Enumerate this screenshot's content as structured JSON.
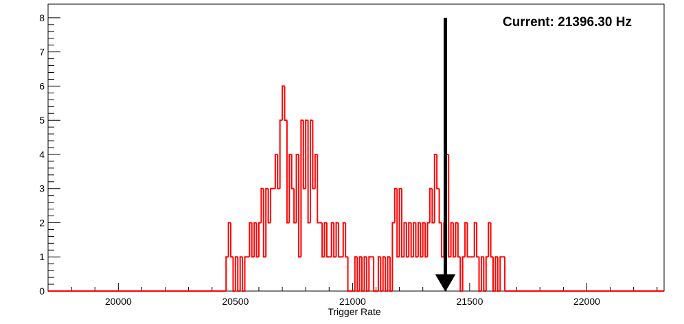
{
  "chart_data": {
    "type": "histogram",
    "title": "",
    "xlabel": "Trigger Rate",
    "ylabel": "",
    "xlim": [
      19700,
      22330
    ],
    "ylim": [
      0,
      8.4
    ],
    "x_ticks": [
      20000,
      20500,
      21000,
      21500,
      22000
    ],
    "y_ticks": [
      0,
      1,
      2,
      3,
      4,
      5,
      6,
      7,
      8
    ],
    "annotation": "Current: 21396.30 Hz",
    "current_value": 21396.3,
    "line_color": "#ff0000",
    "arrow_color": "#000000",
    "series": [
      {
        "bins": [
          [
            20460,
            20470,
            1
          ],
          [
            20470,
            20480,
            2
          ],
          [
            20480,
            20490,
            1
          ],
          [
            20490,
            20500,
            0
          ],
          [
            20500,
            20510,
            1
          ],
          [
            20510,
            20520,
            0
          ],
          [
            20520,
            20530,
            1
          ],
          [
            20530,
            20540,
            0
          ],
          [
            20540,
            20550,
            1
          ],
          [
            20550,
            20560,
            1
          ],
          [
            20560,
            20570,
            2
          ],
          [
            20570,
            20580,
            1
          ],
          [
            20580,
            20590,
            2
          ],
          [
            20590,
            20600,
            1
          ],
          [
            20600,
            20610,
            2
          ],
          [
            20610,
            20620,
            3
          ],
          [
            20620,
            20630,
            1
          ],
          [
            20630,
            20640,
            3
          ],
          [
            20640,
            20650,
            2
          ],
          [
            20650,
            20660,
            3
          ],
          [
            20660,
            20670,
            3
          ],
          [
            20670,
            20680,
            4
          ],
          [
            20680,
            20690,
            3
          ],
          [
            20690,
            20700,
            5
          ],
          [
            20700,
            20710,
            6
          ],
          [
            20710,
            20720,
            5
          ],
          [
            20720,
            20730,
            2
          ],
          [
            20730,
            20740,
            4
          ],
          [
            20740,
            20750,
            3
          ],
          [
            20750,
            20760,
            2
          ],
          [
            20760,
            20770,
            4
          ],
          [
            20770,
            20780,
            1
          ],
          [
            20780,
            20790,
            5
          ],
          [
            20790,
            20800,
            3
          ],
          [
            20800,
            20810,
            5
          ],
          [
            20810,
            20820,
            2
          ],
          [
            20820,
            20830,
            5
          ],
          [
            20830,
            20840,
            3
          ],
          [
            20840,
            20850,
            4
          ],
          [
            20850,
            20860,
            2
          ],
          [
            20860,
            20870,
            2
          ],
          [
            20870,
            20880,
            1
          ],
          [
            20880,
            20890,
            2
          ],
          [
            20890,
            20900,
            1
          ],
          [
            20900,
            20910,
            1
          ],
          [
            20910,
            20920,
            2
          ],
          [
            20920,
            20930,
            1
          ],
          [
            20930,
            20940,
            2
          ],
          [
            20940,
            20950,
            1
          ],
          [
            20950,
            20960,
            1
          ],
          [
            20960,
            20970,
            2
          ],
          [
            20970,
            20980,
            1
          ],
          [
            20980,
            20990,
            0
          ],
          [
            20990,
            21000,
            0
          ],
          [
            21000,
            21010,
            0
          ],
          [
            21010,
            21020,
            1
          ],
          [
            21020,
            21030,
            0
          ],
          [
            21030,
            21040,
            1
          ],
          [
            21040,
            21050,
            0
          ],
          [
            21050,
            21060,
            1
          ],
          [
            21060,
            21070,
            0
          ],
          [
            21070,
            21080,
            1
          ],
          [
            21080,
            21090,
            1
          ],
          [
            21090,
            21100,
            0
          ],
          [
            21100,
            21110,
            0
          ],
          [
            21110,
            21120,
            1
          ],
          [
            21120,
            21130,
            0
          ],
          [
            21130,
            21140,
            1
          ],
          [
            21140,
            21150,
            0
          ],
          [
            21150,
            21160,
            1
          ],
          [
            21160,
            21170,
            0
          ],
          [
            21170,
            21180,
            2
          ],
          [
            21180,
            21190,
            3
          ],
          [
            21190,
            21200,
            1
          ],
          [
            21200,
            21210,
            3
          ],
          [
            21210,
            21220,
            1
          ],
          [
            21220,
            21230,
            2
          ],
          [
            21230,
            21240,
            1
          ],
          [
            21240,
            21250,
            2
          ],
          [
            21250,
            21260,
            1
          ],
          [
            21260,
            21270,
            2
          ],
          [
            21270,
            21280,
            1
          ],
          [
            21280,
            21290,
            2
          ],
          [
            21290,
            21300,
            1
          ],
          [
            21300,
            21310,
            2
          ],
          [
            21310,
            21320,
            1
          ],
          [
            21320,
            21330,
            2
          ],
          [
            21330,
            21340,
            3
          ],
          [
            21340,
            21350,
            2
          ],
          [
            21350,
            21360,
            4
          ],
          [
            21360,
            21370,
            3
          ],
          [
            21370,
            21380,
            2
          ],
          [
            21380,
            21390,
            1
          ],
          [
            21390,
            21400,
            2
          ],
          [
            21400,
            21410,
            4
          ],
          [
            21410,
            21420,
            1
          ],
          [
            21420,
            21430,
            2
          ],
          [
            21430,
            21440,
            1
          ],
          [
            21440,
            21450,
            2
          ],
          [
            21450,
            21460,
            1
          ],
          [
            21460,
            21470,
            0
          ],
          [
            21470,
            21480,
            1
          ],
          [
            21480,
            21490,
            2
          ],
          [
            21490,
            21500,
            1
          ],
          [
            21500,
            21510,
            1
          ],
          [
            21510,
            21520,
            1
          ],
          [
            21520,
            21530,
            2
          ],
          [
            21530,
            21540,
            1
          ],
          [
            21540,
            21550,
            0
          ],
          [
            21550,
            21560,
            1
          ],
          [
            21560,
            21570,
            0
          ],
          [
            21570,
            21580,
            1
          ],
          [
            21580,
            21590,
            2
          ],
          [
            21590,
            21600,
            1
          ],
          [
            21600,
            21610,
            0
          ],
          [
            21610,
            21620,
            1
          ],
          [
            21620,
            21630,
            0
          ],
          [
            21630,
            21640,
            1
          ],
          [
            21640,
            21650,
            1
          ]
        ]
      }
    ]
  }
}
